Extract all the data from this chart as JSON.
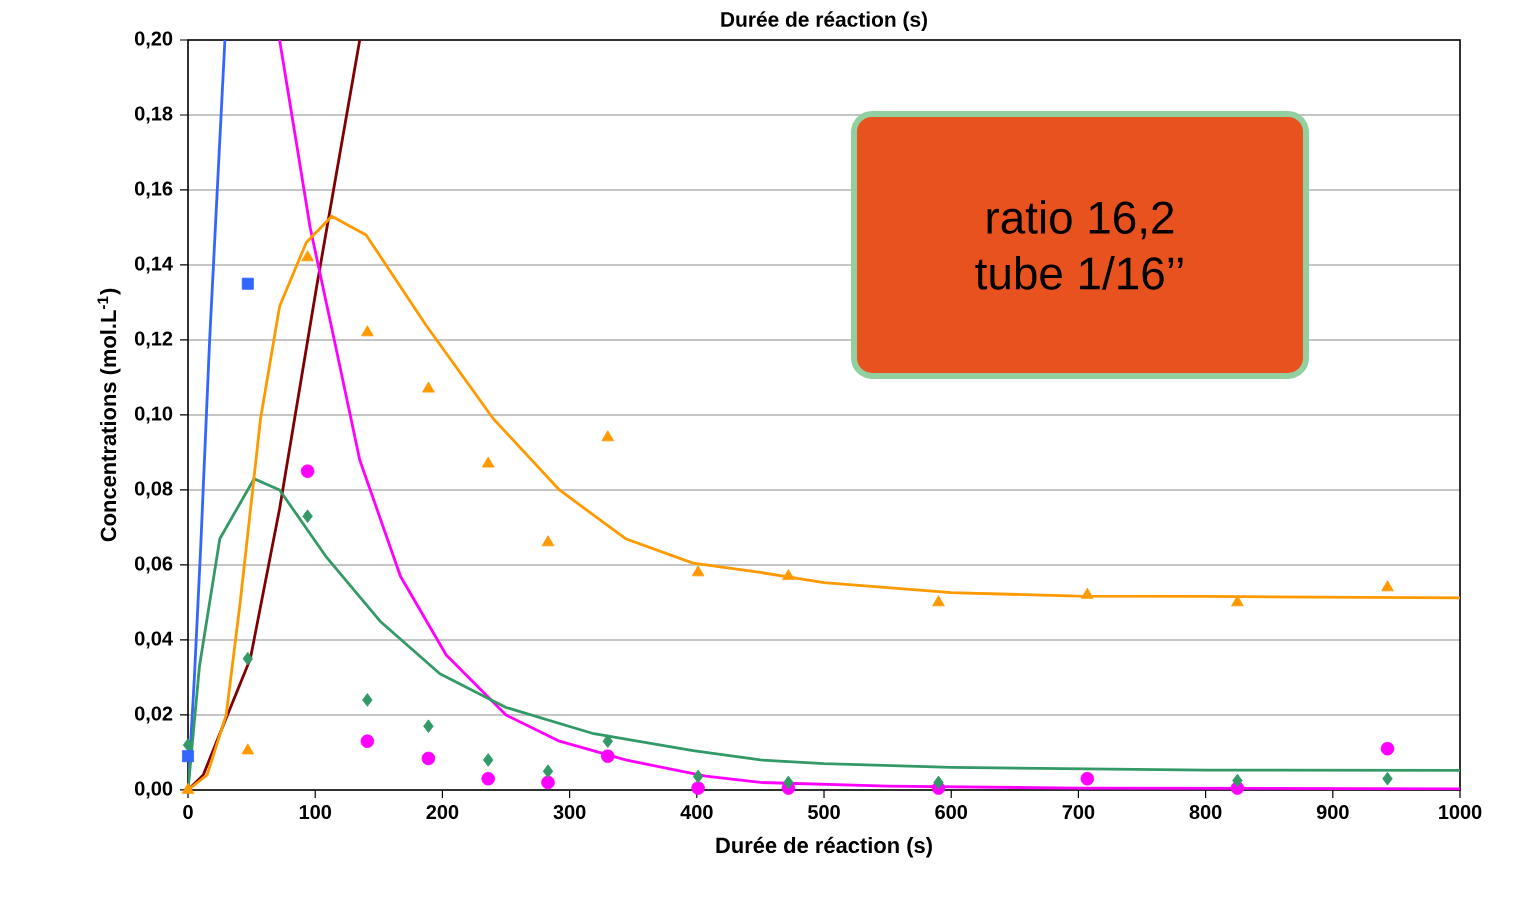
{
  "chart_data": {
    "type": "scatter",
    "title": "Durée de réaction (s)",
    "xlabel": "Durée de réaction (s)",
    "ylabel": "Concentrations (mol.L$^{-1}$)",
    "annotations": [
      "ratio 16,2",
      "tube 1/16’’"
    ],
    "xlim": [
      0,
      1000
    ],
    "xticks": [
      0,
      100,
      200,
      300,
      400,
      500,
      600,
      700,
      800,
      900,
      1000
    ],
    "ylim": [
      0,
      0.2
    ],
    "yticks": [
      {
        "value": 0,
        "label": "0,00"
      },
      {
        "value": 0.02,
        "label": "0,02"
      },
      {
        "value": 0.04,
        "label": "0,04"
      },
      {
        "value": 0.06,
        "label": "0,06"
      },
      {
        "value": 0.08,
        "label": "0,08"
      },
      {
        "value": 0.1,
        "label": "0,10"
      },
      {
        "value": 0.12,
        "label": "0,12"
      },
      {
        "value": 0.14,
        "label": "0,14"
      },
      {
        "value": 0.16,
        "label": "0,16"
      },
      {
        "value": 0.18,
        "label": "0,18"
      },
      {
        "value": 0.2,
        "label": "0,20"
      }
    ],
    "grid": "y",
    "series": [
      {
        "type": "line",
        "color": "#3366ff",
        "marker": "none",
        "x": [
          0,
          5,
          10,
          17,
          23,
          29
        ],
        "values": [
          0,
          0.03,
          0.065,
          0.12,
          0.16,
          0.2
        ]
      },
      {
        "type": "line",
        "color": "#800000",
        "marker": "none",
        "x": [
          0,
          12,
          25,
          49,
          72,
          101,
          135
        ],
        "values": [
          0,
          0.004,
          0.015,
          0.035,
          0.075,
          0.134,
          0.2
        ]
      },
      {
        "type": "line",
        "color": "#ff00ff",
        "marker": "none",
        "x": [
          72,
          85,
          96,
          115,
          135,
          167,
          203,
          250,
          292,
          344,
          407,
          450,
          550,
          700,
          1000
        ],
        "values": [
          0.2,
          0.173,
          0.15,
          0.12,
          0.088,
          0.057,
          0.036,
          0.02,
          0.013,
          0.008,
          0.0037,
          0.002,
          0.001,
          0.0005,
          0.0003
        ]
      },
      {
        "type": "line",
        "color": "#339966",
        "marker": "none",
        "x": [
          0,
          9,
          25,
          52,
          72,
          109,
          151,
          198,
          250,
          319,
          397,
          450,
          500,
          600,
          800,
          1000
        ],
        "values": [
          0,
          0.033,
          0.067,
          0.083,
          0.08,
          0.062,
          0.045,
          0.031,
          0.022,
          0.015,
          0.0105,
          0.008,
          0.007,
          0.006,
          0.0053,
          0.0052
        ]
      },
      {
        "type": "line",
        "color": "#ff9900",
        "marker": "none",
        "x": [
          0,
          15,
          30,
          41,
          57,
          72,
          93,
          113,
          140,
          187,
          240,
          292,
          344,
          397,
          450,
          500,
          600,
          700,
          800,
          1000
        ],
        "values": [
          0,
          0.004,
          0.02,
          0.05,
          0.099,
          0.129,
          0.146,
          0.153,
          0.148,
          0.124,
          0.099,
          0.08,
          0.067,
          0.0605,
          0.058,
          0.0553,
          0.0526,
          0.0517,
          0.0516,
          0.0512
        ]
      },
      {
        "color": "#ff9900",
        "marker": "triangle",
        "x": [
          0,
          47,
          94,
          141,
          189,
          236,
          283,
          330,
          401,
          472,
          590,
          707,
          825,
          943
        ],
        "values": [
          0,
          0.0105,
          0.142,
          0.122,
          0.107,
          0.087,
          0.066,
          0.094,
          0.058,
          0.057,
          0.05,
          0.052,
          0.05,
          0.054
        ]
      },
      {
        "color": "#ff00ff",
        "marker": "circle",
        "x": [
          94,
          141,
          189,
          236,
          283,
          330,
          401,
          472,
          590,
          707,
          825,
          943
        ],
        "values": [
          0.085,
          0.013,
          0.0084,
          0.003,
          0.002,
          0.009,
          0.0005,
          0.0005,
          0.0005,
          0.003,
          0.0005,
          0.011
        ]
      },
      {
        "color": "#339966",
        "marker": "diamond",
        "x": [
          0,
          47,
          94,
          141,
          189,
          236,
          283,
          330,
          401,
          472,
          590,
          825,
          943
        ],
        "values": [
          0.012,
          0.035,
          0.073,
          0.024,
          0.017,
          0.008,
          0.005,
          0.013,
          0.0036,
          0.002,
          0.002,
          0.0025,
          0.003
        ]
      },
      {
        "color": "#3366ff",
        "marker": "square",
        "x": [
          0,
          47
        ],
        "values": [
          0.009,
          0.135
        ]
      }
    ]
  }
}
